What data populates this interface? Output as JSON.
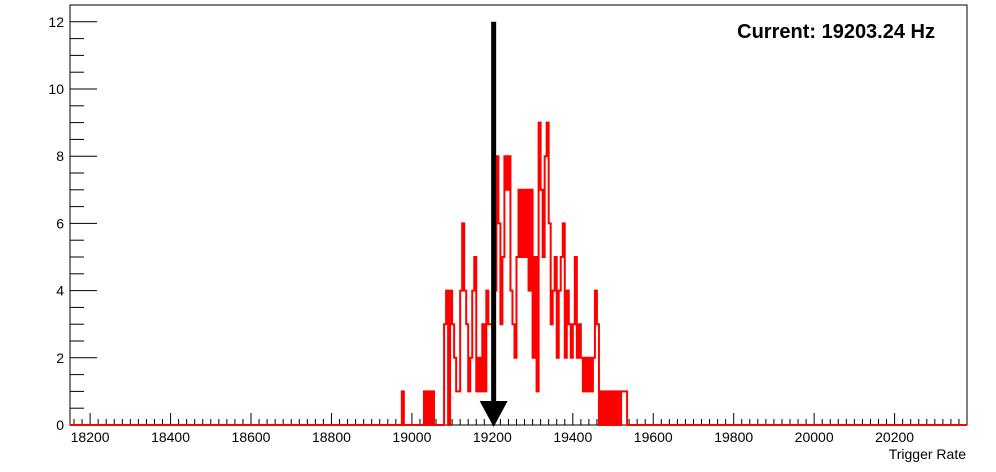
{
  "chart_data": {
    "type": "histogram",
    "title": "",
    "xlabel": "Trigger Rate",
    "ylabel": "",
    "xlim": [
      18150,
      20380
    ],
    "ylim": [
      0,
      12.5
    ],
    "x_ticks": [
      18200,
      18400,
      18600,
      18800,
      19000,
      19200,
      19400,
      19600,
      19800,
      20000,
      20200
    ],
    "y_ticks": [
      0,
      2,
      4,
      6,
      8,
      10,
      12
    ],
    "x_minor_step": 20,
    "y_minor_step": 0.5,
    "bin_width": 5,
    "grid": false,
    "line_color": "#ff0000",
    "annotation": {
      "text": "Current: 19203.24 Hz",
      "arrow_x": 19203.24,
      "arrow_y_top": 12,
      "arrow_y_bottom": 0
    },
    "bins": [
      [
        18975,
        1
      ],
      [
        19030,
        1
      ],
      [
        19040,
        1
      ],
      [
        19050,
        1
      ],
      [
        19080,
        3
      ],
      [
        19085,
        4
      ],
      [
        19095,
        4
      ],
      [
        19100,
        3
      ],
      [
        19105,
        2
      ],
      [
        19110,
        1
      ],
      [
        19115,
        1
      ],
      [
        19120,
        4
      ],
      [
        19125,
        6
      ],
      [
        19130,
        4
      ],
      [
        19135,
        3
      ],
      [
        19140,
        1
      ],
      [
        19145,
        2
      ],
      [
        19150,
        4
      ],
      [
        19155,
        5
      ],
      [
        19160,
        1
      ],
      [
        19165,
        2
      ],
      [
        19170,
        1
      ],
      [
        19175,
        3
      ],
      [
        19180,
        1
      ],
      [
        19185,
        4
      ],
      [
        19190,
        3
      ],
      [
        19195,
        3
      ],
      [
        19200,
        1
      ],
      [
        19205,
        4
      ],
      [
        19210,
        8
      ],
      [
        19215,
        6
      ],
      [
        19220,
        3
      ],
      [
        19225,
        5
      ],
      [
        19230,
        8
      ],
      [
        19235,
        7
      ],
      [
        19240,
        8
      ],
      [
        19245,
        4
      ],
      [
        19250,
        3
      ],
      [
        19255,
        2
      ],
      [
        19260,
        5
      ],
      [
        19265,
        7
      ],
      [
        19270,
        5
      ],
      [
        19275,
        7
      ],
      [
        19280,
        5
      ],
      [
        19285,
        7
      ],
      [
        19290,
        4
      ],
      [
        19295,
        7
      ],
      [
        19300,
        2
      ],
      [
        19305,
        5
      ],
      [
        19310,
        1
      ],
      [
        19315,
        9
      ],
      [
        19320,
        7
      ],
      [
        19325,
        5
      ],
      [
        19330,
        8
      ],
      [
        19335,
        9
      ],
      [
        19340,
        6
      ],
      [
        19345,
        3
      ],
      [
        19350,
        4
      ],
      [
        19355,
        5
      ],
      [
        19360,
        2
      ],
      [
        19365,
        4
      ],
      [
        19370,
        5
      ],
      [
        19375,
        6
      ],
      [
        19380,
        2
      ],
      [
        19385,
        4
      ],
      [
        19390,
        3
      ],
      [
        19395,
        2
      ],
      [
        19400,
        3
      ],
      [
        19405,
        5
      ],
      [
        19410,
        2
      ],
      [
        19415,
        3
      ],
      [
        19420,
        2
      ],
      [
        19425,
        1
      ],
      [
        19430,
        2
      ],
      [
        19435,
        1
      ],
      [
        19440,
        2
      ],
      [
        19445,
        1
      ],
      [
        19450,
        2
      ],
      [
        19455,
        4
      ],
      [
        19460,
        3
      ],
      [
        19470,
        1
      ],
      [
        19480,
        1
      ],
      [
        19490,
        1
      ],
      [
        19500,
        1
      ],
      [
        19510,
        1
      ],
      [
        19520,
        1
      ],
      [
        19525,
        1
      ],
      [
        19530,
        1
      ]
    ]
  }
}
